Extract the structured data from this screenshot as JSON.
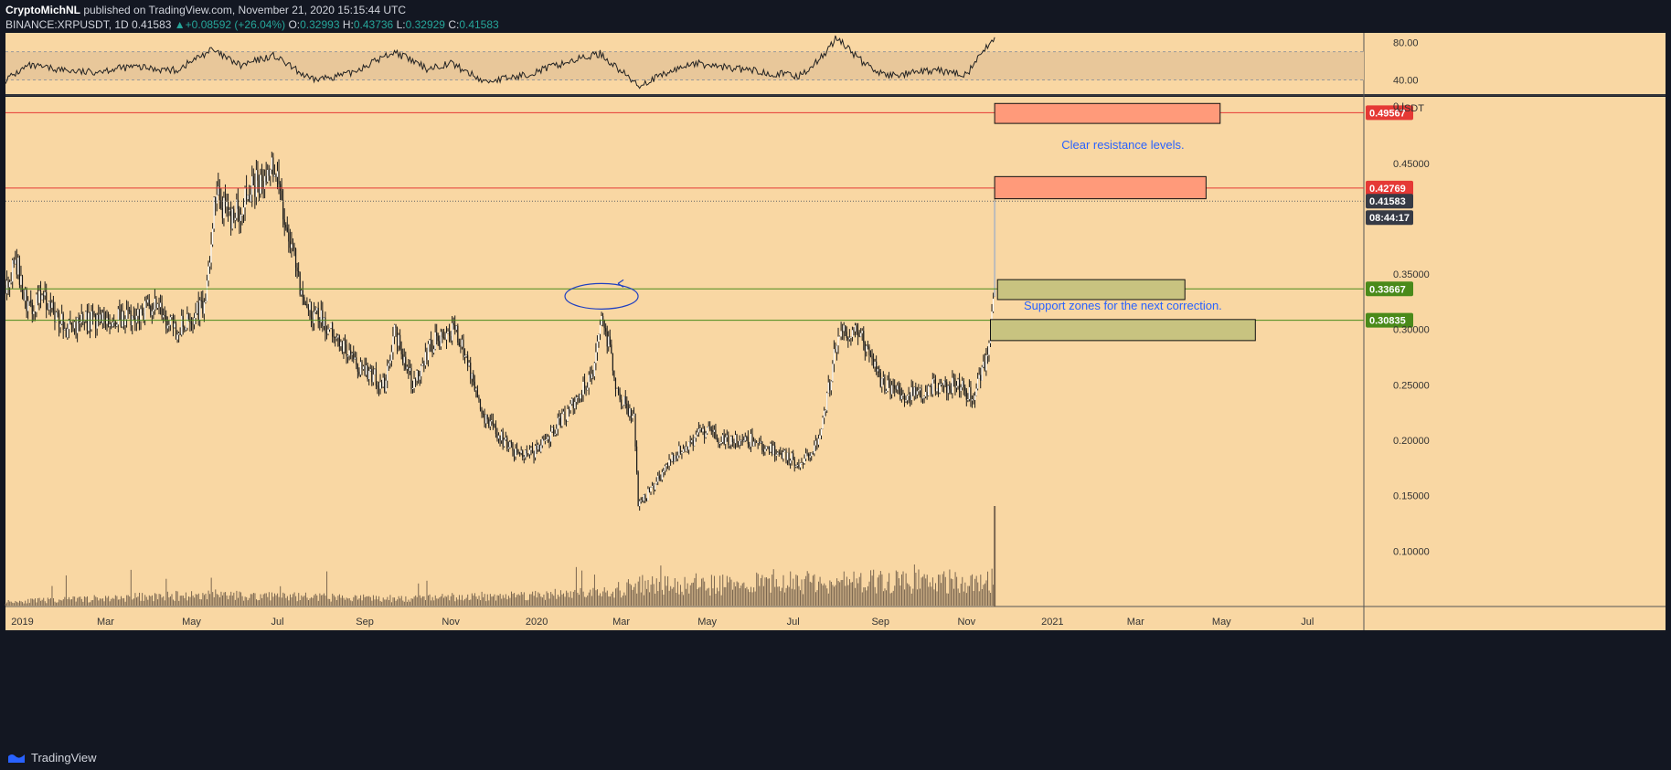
{
  "header": {
    "publisher": "CryptoMichNL",
    "published_line": " published on TradingView.com, November 21, 2020 15:15:44 UTC",
    "symbol": "BINANCE:XRPUSDT, 1D",
    "price": "0.41583",
    "change": "+0.08592 (+26.04%)",
    "o_label": "O:",
    "o": "0.32993",
    "h_label": "H:",
    "h": "0.43736",
    "l_label": "L:",
    "l": "0.32929",
    "c_label": "C:",
    "c": "0.41583"
  },
  "footer": {
    "brand": "TradingView"
  },
  "colors": {
    "background": "#f9d7a3",
    "frame": "#131722",
    "resistance": "#e53935",
    "support": "#4a8a1a",
    "resistance_box": "#ff9a7a",
    "support_box": "#c8c380",
    "annotation_text": "#2962ff",
    "candle": "#1b1b1b",
    "price_tag_dark": "#363a45",
    "rsi_band": "#e8c79a"
  },
  "chart_data": {
    "type": "candlestick",
    "symbol": "BINANCE:XRPUSDT",
    "interval": "1D",
    "x_tick_labels": [
      "2019",
      "Mar",
      "May",
      "Jul",
      "Sep",
      "Nov",
      "2020",
      "Mar",
      "May",
      "Jul",
      "Sep",
      "Nov",
      "2021",
      "Mar",
      "May",
      "Jul"
    ],
    "y_tick_labels": [
      "0.10000",
      "0.15000",
      "0.20000",
      "0.25000",
      "0.30000",
      "0.35000",
      "0.45000"
    ],
    "ylim": [
      0.05,
      0.51
    ],
    "y_unit": "USDT",
    "top_y_label": "0.!",
    "price_path": [
      [
        "2018-12-20",
        0.34
      ],
      [
        "2018-12-28",
        0.36
      ],
      [
        "2019-01-05",
        0.32
      ],
      [
        "2019-01-15",
        0.33
      ],
      [
        "2019-02-01",
        0.3
      ],
      [
        "2019-02-20",
        0.31
      ],
      [
        "2019-03-15",
        0.31
      ],
      [
        "2019-04-05",
        0.32
      ],
      [
        "2019-04-20",
        0.3
      ],
      [
        "2019-05-10",
        0.32
      ],
      [
        "2019-05-18",
        0.42
      ],
      [
        "2019-05-30",
        0.4
      ],
      [
        "2019-06-15",
        0.43
      ],
      [
        "2019-06-28",
        0.45
      ],
      [
        "2019-07-10",
        0.38
      ],
      [
        "2019-07-20",
        0.32
      ],
      [
        "2019-08-10",
        0.3
      ],
      [
        "2019-08-25",
        0.27
      ],
      [
        "2019-09-15",
        0.25
      ],
      [
        "2019-09-22",
        0.3
      ],
      [
        "2019-10-05",
        0.25
      ],
      [
        "2019-10-20",
        0.29
      ],
      [
        "2019-11-05",
        0.3
      ],
      [
        "2019-11-25",
        0.22
      ],
      [
        "2019-12-15",
        0.19
      ],
      [
        "2020-01-01",
        0.19
      ],
      [
        "2020-01-20",
        0.22
      ],
      [
        "2020-02-10",
        0.26
      ],
      [
        "2020-02-16",
        0.32
      ],
      [
        "2020-02-28",
        0.24
      ],
      [
        "2020-03-10",
        0.22
      ],
      [
        "2020-03-13",
        0.14
      ],
      [
        "2020-03-25",
        0.16
      ],
      [
        "2020-04-10",
        0.19
      ],
      [
        "2020-05-01",
        0.21
      ],
      [
        "2020-05-10",
        0.2
      ],
      [
        "2020-06-01",
        0.2
      ],
      [
        "2020-06-20",
        0.19
      ],
      [
        "2020-07-05",
        0.18
      ],
      [
        "2020-07-20",
        0.2
      ],
      [
        "2020-08-01",
        0.29
      ],
      [
        "2020-08-10",
        0.3
      ],
      [
        "2020-08-20",
        0.29
      ],
      [
        "2020-09-03",
        0.25
      ],
      [
        "2020-09-20",
        0.24
      ],
      [
        "2020-10-10",
        0.25
      ],
      [
        "2020-10-25",
        0.25
      ],
      [
        "2020-11-05",
        0.24
      ],
      [
        "2020-11-15",
        0.27
      ],
      [
        "2020-11-20",
        0.33
      ],
      [
        "2020-11-21",
        0.41583
      ]
    ],
    "last_candle": {
      "date": "2020-11-21",
      "open": 0.32993,
      "high": 0.43736,
      "low": 0.32929,
      "close": 0.41583
    },
    "horizontal_levels": [
      {
        "value": 0.49567,
        "label": "0.49567",
        "kind": "resistance"
      },
      {
        "value": 0.42769,
        "label": "0.42769",
        "kind": "resistance"
      },
      {
        "value": 0.33667,
        "label": "0.33667",
        "kind": "support"
      },
      {
        "value": 0.30835,
        "label": "0.30835",
        "kind": "support"
      }
    ],
    "current_price_tag": "0.41583",
    "countdown_tag": "08:44:17",
    "zones": [
      {
        "kind": "resistance",
        "from_date": "2020-11-21",
        "to_date": "2021-04-30",
        "low": 0.486,
        "high": 0.504
      },
      {
        "kind": "resistance",
        "from_date": "2020-11-21",
        "to_date": "2021-04-20",
        "low": 0.418,
        "high": 0.438
      },
      {
        "kind": "support",
        "from_date": "2020-11-23",
        "to_date": "2021-04-05",
        "low": 0.327,
        "high": 0.345
      },
      {
        "kind": "support",
        "from_date": "2020-11-18",
        "to_date": "2021-05-25",
        "low": 0.29,
        "high": 0.309
      }
    ],
    "annotations": [
      {
        "text": "Clear resistance levels.",
        "date": "2021-02-20",
        "value": 0.463
      },
      {
        "text": "Support zones for the next correction.",
        "date": "2021-02-20",
        "value": 0.318
      }
    ],
    "rsi": {
      "upper_label": "80.00",
      "lower_label": "40.00",
      "ylim": [
        25,
        90
      ],
      "band": [
        40,
        70
      ],
      "path": [
        [
          "2018-12-20",
          40
        ],
        [
          "2019-01-05",
          55
        ],
        [
          "2019-02-15",
          48
        ],
        [
          "2019-03-20",
          54
        ],
        [
          "2019-04-20",
          50
        ],
        [
          "2019-05-15",
          72
        ],
        [
          "2019-06-05",
          55
        ],
        [
          "2019-06-28",
          66
        ],
        [
          "2019-07-25",
          40
        ],
        [
          "2019-08-20",
          46
        ],
        [
          "2019-09-22",
          70
        ],
        [
          "2019-10-15",
          52
        ],
        [
          "2019-11-01",
          58
        ],
        [
          "2019-11-25",
          38
        ],
        [
          "2019-12-20",
          44
        ],
        [
          "2020-01-25",
          60
        ],
        [
          "2020-02-15",
          68
        ],
        [
          "2020-03-13",
          34
        ],
        [
          "2020-04-20",
          58
        ],
        [
          "2020-06-01",
          50
        ],
        [
          "2020-07-05",
          44
        ],
        [
          "2020-07-20",
          62
        ],
        [
          "2020-08-01",
          85
        ],
        [
          "2020-08-20",
          58
        ],
        [
          "2020-09-05",
          44
        ],
        [
          "2020-10-10",
          50
        ],
        [
          "2020-11-01",
          46
        ],
        [
          "2020-11-21",
          86
        ]
      ]
    },
    "volume_path": [
      [
        "2018-12-20",
        0.5
      ],
      [
        "2019-05-15",
        1.4
      ],
      [
        "2019-06-28",
        1.2
      ],
      [
        "2019-09-22",
        0.9
      ],
      [
        "2020-02-16",
        1.6
      ],
      [
        "2020-03-13",
        2.6
      ],
      [
        "2020-08-01",
        3.0
      ],
      [
        "2020-11-21",
        3.2
      ]
    ]
  }
}
